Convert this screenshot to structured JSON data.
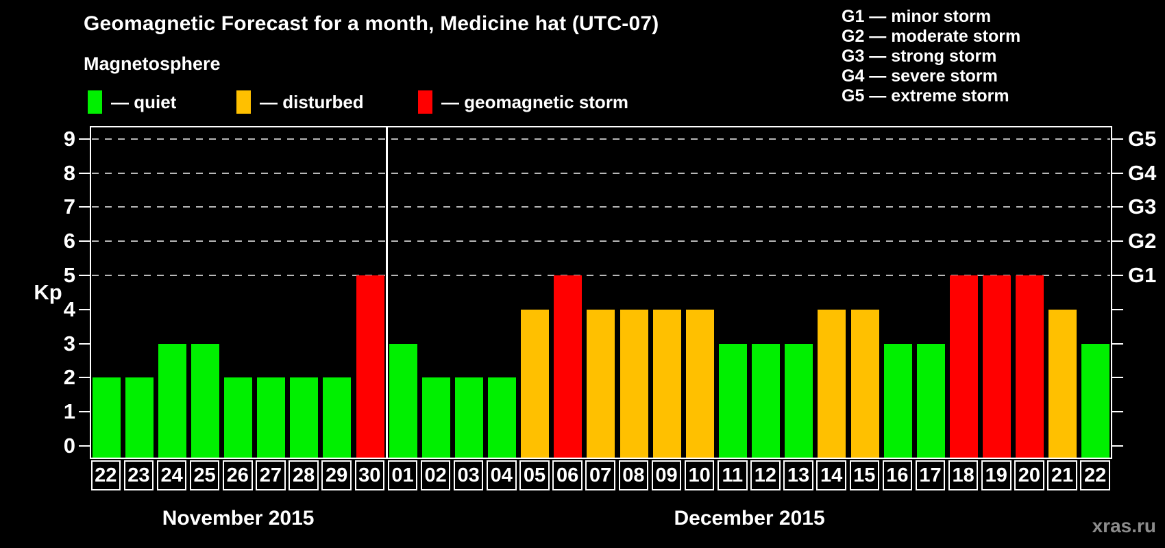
{
  "title": "Geomagnetic Forecast for a month, Medicine hat (UTC-07)",
  "subtitle": "Magnetosphere",
  "legend": {
    "items": [
      {
        "key": "quiet",
        "label": "— quiet"
      },
      {
        "key": "disturbed",
        "label": "— disturbed"
      },
      {
        "key": "storm",
        "label": "— geomagnetic storm"
      }
    ]
  },
  "g_scale_legend": [
    "G1 — minor storm",
    "G2 — moderate storm",
    "G3 — strong storm",
    "G4 — severe storm",
    "G5 — extreme storm"
  ],
  "watermark": "xras.ru",
  "chart_data": {
    "type": "bar",
    "title": "Geomagnetic Forecast for a month, Medicine hat (UTC-07)",
    "ylabel": "Kp",
    "ylim": [
      0,
      9
    ],
    "yticks": [
      0,
      1,
      2,
      3,
      4,
      5,
      6,
      7,
      8,
      9
    ],
    "grid_levels": [
      5,
      6,
      7,
      8,
      9
    ],
    "grid": "dashed horizontal at G-storm levels only",
    "legend_position": "top",
    "status_colors": {
      "quiet": "#00f000",
      "disturbed": "#ffc000",
      "storm": "#ff0000"
    },
    "g_scale": [
      {
        "kp": 5,
        "label": "G1"
      },
      {
        "kp": 6,
        "label": "G2"
      },
      {
        "kp": 7,
        "label": "G3"
      },
      {
        "kp": 8,
        "label": "G4"
      },
      {
        "kp": 9,
        "label": "G5"
      }
    ],
    "months": [
      {
        "label": "November 2015",
        "days": [
          {
            "day": "22",
            "kp": 2,
            "status": "quiet"
          },
          {
            "day": "23",
            "kp": 2,
            "status": "quiet"
          },
          {
            "day": "24",
            "kp": 3,
            "status": "quiet"
          },
          {
            "day": "25",
            "kp": 3,
            "status": "quiet"
          },
          {
            "day": "26",
            "kp": 2,
            "status": "quiet"
          },
          {
            "day": "27",
            "kp": 2,
            "status": "quiet"
          },
          {
            "day": "28",
            "kp": 2,
            "status": "quiet"
          },
          {
            "day": "29",
            "kp": 2,
            "status": "quiet"
          },
          {
            "day": "30",
            "kp": 5,
            "status": "storm"
          }
        ]
      },
      {
        "label": "December 2015",
        "days": [
          {
            "day": "01",
            "kp": 3,
            "status": "quiet"
          },
          {
            "day": "02",
            "kp": 2,
            "status": "quiet"
          },
          {
            "day": "03",
            "kp": 2,
            "status": "quiet"
          },
          {
            "day": "04",
            "kp": 2,
            "status": "quiet"
          },
          {
            "day": "05",
            "kp": 4,
            "status": "disturbed"
          },
          {
            "day": "06",
            "kp": 5,
            "status": "storm"
          },
          {
            "day": "07",
            "kp": 4,
            "status": "disturbed"
          },
          {
            "day": "08",
            "kp": 4,
            "status": "disturbed"
          },
          {
            "day": "09",
            "kp": 4,
            "status": "disturbed"
          },
          {
            "day": "10",
            "kp": 4,
            "status": "disturbed"
          },
          {
            "day": "11",
            "kp": 3,
            "status": "quiet"
          },
          {
            "day": "12",
            "kp": 3,
            "status": "quiet"
          },
          {
            "day": "13",
            "kp": 3,
            "status": "quiet"
          },
          {
            "day": "14",
            "kp": 4,
            "status": "disturbed"
          },
          {
            "day": "15",
            "kp": 4,
            "status": "disturbed"
          },
          {
            "day": "16",
            "kp": 3,
            "status": "quiet"
          },
          {
            "day": "17",
            "kp": 3,
            "status": "quiet"
          },
          {
            "day": "18",
            "kp": 5,
            "status": "storm"
          },
          {
            "day": "19",
            "kp": 5,
            "status": "storm"
          },
          {
            "day": "20",
            "kp": 5,
            "status": "storm"
          },
          {
            "day": "21",
            "kp": 4,
            "status": "disturbed"
          },
          {
            "day": "22",
            "kp": 3,
            "status": "quiet"
          }
        ]
      }
    ]
  }
}
